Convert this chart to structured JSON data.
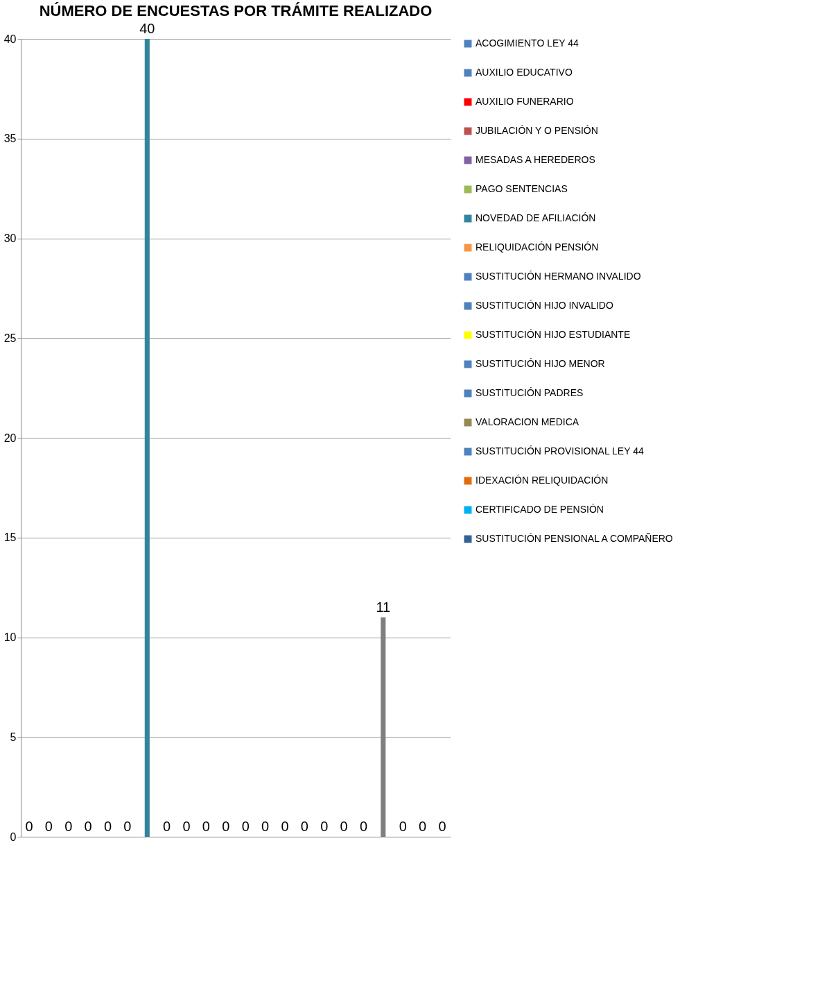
{
  "chart_data": {
    "type": "bar",
    "title": "NÚMERO DE ENCUESTAS POR TRÁMITE REALIZADO",
    "categories": [
      null,
      null,
      null,
      null,
      null,
      null,
      null,
      null,
      null,
      null,
      null,
      null,
      null,
      null,
      null,
      null,
      null,
      null,
      null,
      null,
      null,
      null
    ],
    "series": [
      {
        "name": "ACOGIMIENTO LEY 44",
        "color": "#4f81bd",
        "values": [
          0,
          null,
          null,
          null,
          null,
          null,
          null,
          null,
          null,
          null,
          null,
          null,
          null,
          null,
          null,
          null,
          null,
          null,
          null,
          null,
          null,
          null
        ]
      },
      {
        "name": "AUXILIO EDUCATIVO",
        "color": "#4f81bd",
        "values": [
          null,
          0,
          null,
          null,
          null,
          null,
          null,
          null,
          null,
          null,
          null,
          null,
          null,
          null,
          null,
          null,
          null,
          null,
          null,
          null,
          null,
          null
        ]
      },
      {
        "name": "AUXILIO FUNERARIO",
        "color": "#ff0000",
        "values": [
          null,
          null,
          0,
          null,
          null,
          null,
          null,
          null,
          null,
          null,
          null,
          null,
          null,
          null,
          null,
          null,
          null,
          null,
          null,
          null,
          null,
          null
        ]
      },
      {
        "name": "JUBILACIÓN Y O PENSIÓN",
        "color": "#c0504d",
        "values": [
          null,
          null,
          null,
          0,
          null,
          null,
          null,
          null,
          null,
          null,
          null,
          null,
          null,
          null,
          null,
          null,
          null,
          null,
          null,
          null,
          null,
          null
        ]
      },
      {
        "name": "MESADAS A HEREDEROS",
        "color": "#8064a2",
        "values": [
          null,
          null,
          null,
          null,
          0,
          null,
          null,
          null,
          null,
          null,
          null,
          null,
          null,
          null,
          null,
          null,
          null,
          null,
          null,
          null,
          null,
          null
        ]
      },
      {
        "name": "PAGO SENTENCIAS",
        "color": "#9bbb59",
        "values": [
          null,
          null,
          null,
          null,
          null,
          0,
          null,
          null,
          null,
          null,
          null,
          null,
          null,
          null,
          null,
          null,
          null,
          null,
          null,
          null,
          null,
          null
        ]
      },
      {
        "name": "NOVEDAD DE AFILIACIÓN",
        "color": "#31859c",
        "values": [
          null,
          null,
          null,
          null,
          null,
          null,
          40,
          null,
          null,
          null,
          null,
          null,
          null,
          null,
          null,
          null,
          null,
          null,
          null,
          null,
          null,
          null
        ]
      },
      {
        "name": "RELIQUIDACIÓN PENSIÓN",
        "color": "#f79646",
        "values": [
          null,
          null,
          null,
          null,
          null,
          null,
          null,
          0,
          null,
          null,
          null,
          null,
          null,
          null,
          null,
          null,
          null,
          null,
          null,
          null,
          null,
          null
        ]
      },
      {
        "name": "SUSTITUCIÓN HERMANO INVALIDO",
        "color": "#4f81bd",
        "values": [
          null,
          null,
          null,
          null,
          null,
          null,
          null,
          null,
          0,
          null,
          null,
          null,
          null,
          null,
          null,
          null,
          null,
          null,
          null,
          null,
          null,
          null
        ]
      },
      {
        "name": "SUSTITUCIÓN HIJO INVALIDO",
        "color": "#4f81bd",
        "values": [
          null,
          null,
          null,
          null,
          null,
          null,
          null,
          null,
          null,
          0,
          null,
          null,
          null,
          null,
          null,
          null,
          null,
          null,
          null,
          null,
          null,
          null
        ]
      },
      {
        "name": "SUSTITUCIÓN HIJO ESTUDIANTE",
        "color": "#ffff00",
        "values": [
          null,
          null,
          null,
          null,
          null,
          null,
          null,
          null,
          null,
          null,
          0,
          null,
          null,
          null,
          null,
          null,
          null,
          null,
          null,
          null,
          null,
          null
        ]
      },
      {
        "name": "SUSTITUCIÓN HIJO MENOR",
        "color": "#4f81bd",
        "values": [
          null,
          null,
          null,
          null,
          null,
          null,
          null,
          null,
          null,
          null,
          null,
          0,
          null,
          null,
          null,
          null,
          null,
          null,
          null,
          null,
          null,
          null
        ]
      },
      {
        "name": "SUSTITUCIÓN PADRES",
        "color": "#4f81bd",
        "values": [
          null,
          null,
          null,
          null,
          null,
          null,
          null,
          null,
          null,
          null,
          null,
          null,
          0,
          null,
          null,
          null,
          null,
          null,
          null,
          null,
          null,
          null
        ]
      },
      {
        "name": "VALORACION MEDICA",
        "color": "#948a54",
        "values": [
          null,
          null,
          null,
          null,
          null,
          null,
          null,
          null,
          null,
          null,
          null,
          null,
          null,
          0,
          null,
          null,
          null,
          null,
          null,
          null,
          null,
          null
        ]
      },
      {
        "name": "SUSTITUCIÓN PROVISIONAL LEY 44",
        "color": "#4f81bd",
        "values": [
          null,
          null,
          null,
          null,
          null,
          null,
          null,
          null,
          null,
          null,
          null,
          null,
          null,
          null,
          0,
          null,
          null,
          null,
          null,
          null,
          null,
          null
        ]
      },
      {
        "name": "IDEXACIÓN RELIQUIDACIÓN",
        "color": "#e36c09",
        "values": [
          null,
          null,
          null,
          null,
          null,
          null,
          null,
          null,
          null,
          null,
          null,
          null,
          null,
          null,
          null,
          0,
          null,
          null,
          null,
          null,
          null,
          null
        ]
      },
      {
        "name": "CERTIFICADO DE PENSIÓN",
        "color": "#00b0f0",
        "values": [
          null,
          null,
          null,
          null,
          null,
          null,
          null,
          null,
          null,
          null,
          null,
          null,
          null,
          null,
          null,
          null,
          0,
          null,
          null,
          null,
          null,
          null
        ]
      },
      {
        "name": "SUSTITUCIÓN PENSIONAL A COMPAÑERO",
        "color": "#366092",
        "values": [
          null,
          null,
          null,
          null,
          null,
          null,
          null,
          null,
          null,
          null,
          null,
          null,
          null,
          null,
          null,
          null,
          null,
          0,
          null,
          null,
          null,
          null
        ]
      },
      {
        "color": "#7f7f7f",
        "values": [
          null,
          null,
          null,
          null,
          null,
          null,
          null,
          null,
          null,
          null,
          null,
          null,
          null,
          null,
          null,
          null,
          null,
          null,
          11,
          null,
          null,
          null
        ]
      },
      {
        "color": "#00b050",
        "values": [
          null,
          null,
          null,
          null,
          null,
          null,
          null,
          null,
          null,
          null,
          null,
          null,
          null,
          null,
          null,
          null,
          null,
          null,
          null,
          0,
          null,
          null
        ]
      },
      {
        "color": "#4f81bd",
        "values": [
          null,
          null,
          null,
          null,
          null,
          null,
          null,
          null,
          null,
          null,
          null,
          null,
          null,
          null,
          null,
          null,
          null,
          null,
          null,
          null,
          0,
          null
        ]
      },
      {
        "color": "#4f81bd",
        "values": [
          null,
          null,
          null,
          null,
          null,
          null,
          null,
          null,
          null,
          null,
          null,
          null,
          null,
          null,
          null,
          null,
          null,
          null,
          null,
          null,
          null,
          0
        ]
      }
    ],
    "ylim": [
      0,
      40
    ],
    "yticks": [
      0,
      5,
      10,
      15,
      20,
      25,
      30,
      35,
      40
    ],
    "grid": "y",
    "legend": "right",
    "data_labels": true
  }
}
